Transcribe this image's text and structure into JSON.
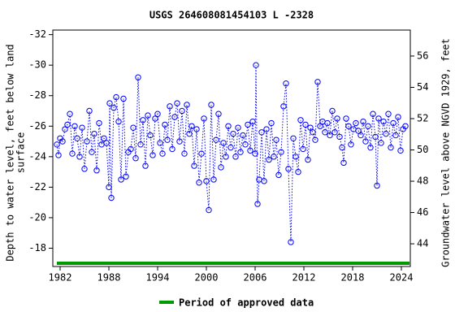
{
  "chart_data": {
    "type": "scatter",
    "title": "USGS 264608081454103 L  -2328",
    "y_label": [
      "Depth to water level, feet below land",
      "surface"
    ],
    "y2_label": "Groundwater level above NGVD 1929, feet",
    "xlim": [
      1981.1,
      2025.1
    ],
    "xticks": [
      1982,
      1988,
      1994,
      2000,
      2006,
      2012,
      2018,
      2024
    ],
    "ylim": [
      -16.8,
      -32.3
    ],
    "yticks": [
      -32,
      -30,
      -28,
      -26,
      -24,
      -22,
      -20,
      -18
    ],
    "y2lim": [
      42.55,
      57.66
    ],
    "y2ticks": [
      44,
      46,
      48,
      50,
      52,
      54,
      56
    ],
    "series": [
      {
        "color": "#0000ff",
        "x": [
          1981.6,
          1981.8,
          1982.0,
          1982.3,
          1982.6,
          1982.9,
          1983.2,
          1983.5,
          1983.8,
          1984.1,
          1984.4,
          1984.7,
          1985.0,
          1985.3,
          1985.6,
          1985.9,
          1986.2,
          1986.5,
          1986.8,
          1987.1,
          1987.4,
          1987.7,
          1988.0,
          1988.1,
          1988.3,
          1988.6,
          1988.9,
          1989.2,
          1989.5,
          1989.8,
          1990.1,
          1990.4,
          1990.7,
          1991.0,
          1991.3,
          1991.6,
          1991.9,
          1992.2,
          1992.5,
          1992.8,
          1993.1,
          1993.4,
          1993.7,
          1994.0,
          1994.3,
          1994.6,
          1994.9,
          1995.2,
          1995.5,
          1995.8,
          1996.1,
          1996.4,
          1996.7,
          1997.0,
          1997.3,
          1997.6,
          1997.9,
          1998.2,
          1998.5,
          1998.8,
          1999.1,
          1999.4,
          1999.7,
          2000.0,
          2000.3,
          2000.6,
          2000.9,
          2001.2,
          2001.5,
          2001.8,
          2002.1,
          2002.4,
          2002.7,
          2003.0,
          2003.3,
          2003.6,
          2003.9,
          2004.2,
          2004.5,
          2004.8,
          2005.1,
          2005.4,
          2005.7,
          2006.0,
          2006.1,
          2006.3,
          2006.5,
          2006.8,
          2007.1,
          2007.4,
          2007.7,
          2008.0,
          2008.3,
          2008.6,
          2008.9,
          2009.2,
          2009.5,
          2009.8,
          2010.1,
          2010.4,
          2010.7,
          2011.0,
          2011.3,
          2011.6,
          2011.9,
          2012.2,
          2012.5,
          2012.8,
          2013.1,
          2013.4,
          2013.7,
          2014.0,
          2014.3,
          2014.6,
          2014.9,
          2015.2,
          2015.5,
          2015.8,
          2016.1,
          2016.4,
          2016.7,
          2016.9,
          2017.2,
          2017.5,
          2017.8,
          2018.1,
          2018.4,
          2018.7,
          2019.0,
          2019.3,
          2019.6,
          2019.9,
          2020.2,
          2020.5,
          2020.8,
          2021.0,
          2021.2,
          2021.5,
          2021.8,
          2022.1,
          2022.4,
          2022.7,
          2023.0,
          2023.3,
          2023.6,
          2023.9,
          2024.2,
          2024.5
        ],
        "values": [
          -24.8,
          -24.1,
          -25.2,
          -25.0,
          -25.8,
          -26.1,
          -26.8,
          -24.2,
          -26.0,
          -25.2,
          -24.0,
          -25.9,
          -23.2,
          -25.0,
          -27.0,
          -24.3,
          -25.5,
          -23.1,
          -26.2,
          -24.8,
          -25.2,
          -24.9,
          -22.0,
          -27.5,
          -21.3,
          -27.2,
          -27.9,
          -26.3,
          -22.5,
          -27.8,
          -22.7,
          -24.3,
          -24.5,
          -25.9,
          -23.9,
          -29.2,
          -24.8,
          -26.4,
          -23.4,
          -26.7,
          -25.4,
          -24.1,
          -26.5,
          -26.8,
          -24.9,
          -24.2,
          -26.1,
          -25.1,
          -27.3,
          -24.5,
          -26.6,
          -27.5,
          -25.0,
          -27.0,
          -24.2,
          -27.4,
          -25.5,
          -26.0,
          -23.4,
          -25.8,
          -22.3,
          -24.2,
          -26.5,
          -22.4,
          -20.5,
          -27.4,
          -22.5,
          -25.1,
          -26.8,
          -23.3,
          -24.9,
          -24.0,
          -26.0,
          -24.6,
          -25.5,
          -24.0,
          -25.9,
          -24.3,
          -25.4,
          -24.8,
          -26.1,
          -24.4,
          -26.3,
          -24.2,
          -30.0,
          -20.9,
          -22.5,
          -25.6,
          -22.4,
          -25.8,
          -23.8,
          -26.2,
          -24.0,
          -25.1,
          -22.8,
          -24.3,
          -27.3,
          -28.8,
          -23.2,
          -18.4,
          -25.2,
          -24.0,
          -23.0,
          -26.4,
          -24.5,
          -26.1,
          -23.8,
          -25.9,
          -25.6,
          -25.1,
          -28.9,
          -26.0,
          -26.3,
          -25.6,
          -26.2,
          -25.4,
          -27.0,
          -25.6,
          -26.5,
          -25.3,
          -24.6,
          -23.6,
          -26.5,
          -26.0,
          -24.8,
          -25.8,
          -26.2,
          -25.7,
          -25.4,
          -26.3,
          -25.0,
          -26.0,
          -24.6,
          -26.8,
          -25.3,
          -22.1,
          -26.5,
          -24.9,
          -26.3,
          -25.5,
          -26.8,
          -24.6,
          -26.2,
          -25.4,
          -26.6,
          -24.4,
          -25.8,
          -26.0
        ]
      }
    ],
    "approved_period": {
      "name": "Period of approved data",
      "color": "#009900",
      "x": [
        1981.6,
        2025.0
      ]
    }
  }
}
